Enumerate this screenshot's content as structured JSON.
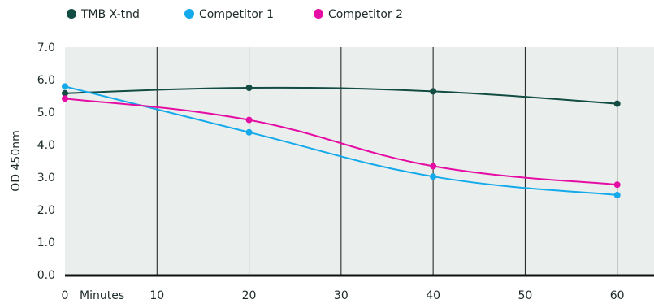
{
  "chart_data": {
    "type": "line",
    "x_tick_labels": [
      "0",
      "10",
      "20",
      "30",
      "40",
      "50",
      "60"
    ],
    "x_unit_label": "Minutes",
    "xlim": [
      0,
      64
    ],
    "ylabel": "OD 450nm",
    "y_tick_labels": [
      "0.0",
      "1.0",
      "2.0",
      "3.0",
      "4.0",
      "5.0",
      "6.0",
      "7.0"
    ],
    "ylim": [
      0,
      7
    ],
    "grid": "vertical",
    "plot_background": "#eaeeed",
    "legend_position": "top-left",
    "series": [
      {
        "name": "TMB X-tnd",
        "color": "#124c42",
        "x": [
          0,
          20,
          40,
          60
        ],
        "y": [
          5.58,
          5.75,
          5.64,
          5.26
        ]
      },
      {
        "name": "Competitor 1",
        "color": "#14a9ea",
        "x": [
          0,
          20,
          40,
          60
        ],
        "y": [
          5.79,
          4.38,
          3.02,
          2.45
        ]
      },
      {
        "name": "Competitor 2",
        "color": "#e50da4",
        "x": [
          0,
          20,
          40,
          60
        ],
        "y": [
          5.42,
          4.76,
          3.34,
          2.77
        ]
      }
    ]
  }
}
